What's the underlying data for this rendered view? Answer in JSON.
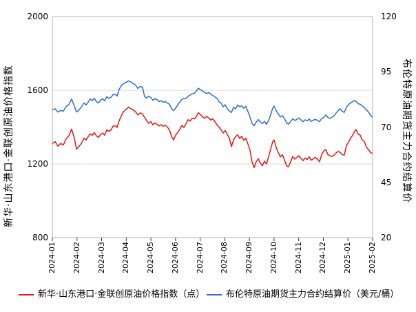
{
  "chart_data": {
    "type": "line",
    "title": "",
    "x_axis": {
      "tick_labels": [
        "2024-01",
        "2024-02",
        "2024-03",
        "2024-04",
        "2024-05",
        "2024-06",
        "2024-07",
        "2024-08",
        "2024-09",
        "2024-10",
        "2024-11",
        "2024-12",
        "2025-01",
        "2025-02"
      ],
      "range_months": [
        0,
        13
      ]
    },
    "left_axis": {
      "title": "新华·山东港口·金联创原油价格指数",
      "ticks": [
        2000,
        1600,
        1200,
        800
      ],
      "range": [
        800,
        2000
      ],
      "gridline_values": [
        1600,
        1200
      ]
    },
    "right_axis": {
      "title": "布伦特原油期货主力合约结算价",
      "ticks": [
        120,
        95,
        70,
        45,
        20
      ],
      "range": [
        20,
        120
      ]
    },
    "legend_position": "bottom",
    "x": [
      0,
      0.112,
      0.224,
      0.336,
      0.447,
      0.559,
      0.671,
      0.783,
      0.895,
      0.979,
      1.062,
      1.174,
      1.286,
      1.37,
      1.454,
      1.538,
      1.622,
      1.705,
      1.789,
      1.873,
      1.957,
      2.041,
      2.125,
      2.209,
      2.293,
      2.376,
      2.46,
      2.544,
      2.628,
      2.712,
      2.796,
      2.88,
      2.992,
      3.103,
      3.187,
      3.299,
      3.383,
      3.467,
      3.579,
      3.662,
      3.746,
      3.83,
      3.914,
      3.998,
      4.082,
      4.166,
      4.249,
      4.333,
      4.417,
      4.501,
      4.585,
      4.669,
      4.753,
      4.836,
      4.92,
      5.004,
      5.088,
      5.172,
      5.256,
      5.34,
      5.424,
      5.507,
      5.591,
      5.675,
      5.759,
      5.843,
      5.927,
      6.011,
      6.095,
      6.178,
      6.262,
      6.346,
      6.43,
      6.514,
      6.598,
      6.682,
      6.766,
      6.849,
      6.933,
      7.017,
      7.101,
      7.185,
      7.269,
      7.353,
      7.437,
      7.521,
      7.604,
      7.688,
      7.772,
      7.856,
      7.94,
      8.024,
      8.108,
      8.192,
      8.275,
      8.359,
      8.443,
      8.527,
      8.611,
      8.695,
      8.779,
      8.863,
      8.946,
      9.002,
      9.086,
      9.17,
      9.254,
      9.338,
      9.422,
      9.506,
      9.59,
      9.674,
      9.757,
      9.841,
      9.925,
      10.009,
      10.093,
      10.177,
      10.261,
      10.345,
      10.429,
      10.512,
      10.596,
      10.68,
      10.764,
      10.848,
      10.932,
      11.016,
      11.1,
      11.184,
      11.267,
      11.351,
      11.435,
      11.519,
      11.603,
      11.687,
      11.771,
      11.855,
      11.939,
      12.023,
      12.106,
      12.19,
      12.274,
      12.33,
      12.414,
      12.498,
      12.582,
      12.666,
      12.749,
      12.833,
      12.917,
      13.0
    ],
    "series": [
      {
        "name": "新华·山东港口·金联创原油价格指数（点）",
        "axis": "left",
        "color": "#e8140f",
        "values": [
          1310,
          1322,
          1296,
          1311,
          1303,
          1336,
          1352,
          1389,
          1340,
          1280,
          1292,
          1310,
          1340,
          1330,
          1348,
          1363,
          1355,
          1370,
          1352,
          1344,
          1360,
          1367,
          1356,
          1385,
          1377,
          1383,
          1404,
          1408,
          1398,
          1434,
          1460,
          1482,
          1497,
          1508,
          1500,
          1492,
          1482,
          1466,
          1477,
          1470,
          1452,
          1434,
          1420,
          1430,
          1412,
          1422,
          1415,
          1406,
          1413,
          1404,
          1410,
          1400,
          1385,
          1350,
          1330,
          1356,
          1370,
          1388,
          1408,
          1398,
          1418,
          1440,
          1432,
          1448,
          1444,
          1456,
          1478,
          1468,
          1455,
          1448,
          1458,
          1450,
          1438,
          1445,
          1430,
          1412,
          1400,
          1385,
          1368,
          1382,
          1360,
          1340,
          1294,
          1330,
          1348,
          1358,
          1338,
          1350,
          1328,
          1340,
          1308,
          1275,
          1210,
          1180,
          1212,
          1228,
          1205,
          1190,
          1215,
          1200,
          1240,
          1280,
          1322,
          1330,
          1290,
          1262,
          1238,
          1250,
          1222,
          1190,
          1185,
          1212,
          1240,
          1226,
          1235,
          1245,
          1230,
          1218,
          1232,
          1224,
          1238,
          1220,
          1228,
          1236,
          1225,
          1212,
          1250,
          1270,
          1278,
          1252,
          1245,
          1240,
          1248,
          1260,
          1268,
          1262,
          1250,
          1248,
          1300,
          1318,
          1340,
          1355,
          1378,
          1386,
          1362,
          1356,
          1330,
          1322,
          1290,
          1278,
          1262,
          1256
        ]
      },
      {
        "name": "布伦特原油期货主力合约结算价（美元/桶）",
        "axis": "right",
        "color": "#2b6bd2",
        "values": [
          77.8,
          78.3,
          76.8,
          77.5,
          77.2,
          79.3,
          80.2,
          82.7,
          79.5,
          76.8,
          77.5,
          79.0,
          80.9,
          80.0,
          81.3,
          82.7,
          82.0,
          83.0,
          81.5,
          80.9,
          82.2,
          82.8,
          81.8,
          83.7,
          83.0,
          83.5,
          84.6,
          84.9,
          84.0,
          87.1,
          88.7,
          89.6,
          90.2,
          90.9,
          90.3,
          89.6,
          88.9,
          87.5,
          88.4,
          88.0,
          83.7,
          83.2,
          84.0,
          83.4,
          82.1,
          82.8,
          82.4,
          81.5,
          82.0,
          81.2,
          81.6,
          80.9,
          80.3,
          78.4,
          77.4,
          78.6,
          80.0,
          81.3,
          82.5,
          82.9,
          83.0,
          83.9,
          84.5,
          85.0,
          85.3,
          86.2,
          87.6,
          86.9,
          86.3,
          85.6,
          85.2,
          85.6,
          84.9,
          84.3,
          83.6,
          83.0,
          81.5,
          80.8,
          79.2,
          80.1,
          78.3,
          77.2,
          76.6,
          79.0,
          78.2,
          80.0,
          79.2,
          79.6,
          78.5,
          79.4,
          77.0,
          74.5,
          71.6,
          70.6,
          72.2,
          73.4,
          72.4,
          71.6,
          72.6,
          71.2,
          73.0,
          75.6,
          78.6,
          79.5,
          77.4,
          75.9,
          74.6,
          75.2,
          73.9,
          71.9,
          71.3,
          72.6,
          73.7,
          73.0,
          73.5,
          74.1,
          73.2,
          72.4,
          73.3,
          72.8,
          73.6,
          72.6,
          73.1,
          73.5,
          73.0,
          72.5,
          73.8,
          74.3,
          75.5,
          74.4,
          73.9,
          74.5,
          75.1,
          76.4,
          77.4,
          78.3,
          77.0,
          76.7,
          79.0,
          80.2,
          81.0,
          81.5,
          82.1,
          81.6,
          80.6,
          80.3,
          79.6,
          78.8,
          77.8,
          76.8,
          75.4,
          74.4
        ]
      }
    ],
    "colors": {
      "grid": "#d9d9d9",
      "plot_border": "#b0b0b0",
      "tick_mark": "#333333",
      "text": "#000000",
      "background": "#ffffff"
    }
  }
}
